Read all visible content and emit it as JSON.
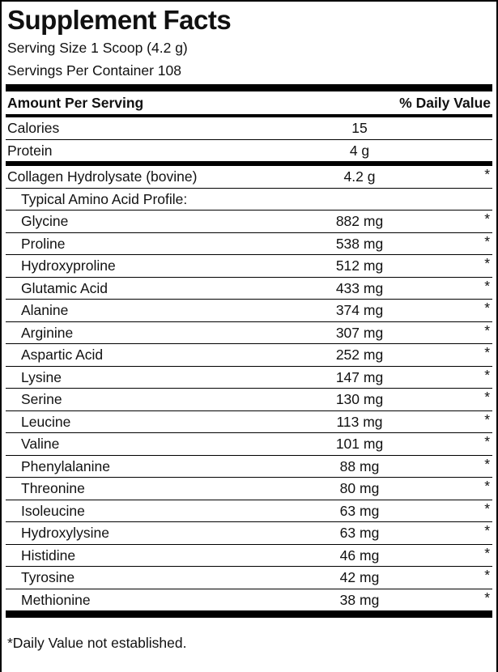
{
  "label": {
    "title": "Supplement Facts",
    "serving_size": "Serving Size 1 Scoop (4.2 g)",
    "servings_per_container": "Servings Per Container 108",
    "header": {
      "amount": "Amount Per Serving",
      "daily_value": "% Daily Value"
    },
    "rows": [
      {
        "label": "Calories",
        "amount": "15",
        "dv": "",
        "indent": false,
        "rule": "thin"
      },
      {
        "label": "Protein",
        "amount": "4 g",
        "dv": "",
        "indent": false,
        "rule": "thick"
      },
      {
        "label": "Collagen Hydrolysate (bovine)",
        "amount": "4.2 g",
        "dv": "*",
        "indent": false,
        "rule": "thin"
      },
      {
        "label": "Typical Amino Acid Profile:",
        "amount": "",
        "dv": "",
        "indent": true,
        "rule": "thin"
      },
      {
        "label": "Glycine",
        "amount": "882 mg",
        "dv": "*",
        "indent": true,
        "rule": "thin"
      },
      {
        "label": "Proline",
        "amount": "538 mg",
        "dv": "*",
        "indent": true,
        "rule": "thin"
      },
      {
        "label": "Hydroxyproline",
        "amount": "512 mg",
        "dv": "*",
        "indent": true,
        "rule": "thin"
      },
      {
        "label": "Glutamic Acid",
        "amount": "433 mg",
        "dv": "*",
        "indent": true,
        "rule": "thin"
      },
      {
        "label": "Alanine",
        "amount": "374 mg",
        "dv": "*",
        "indent": true,
        "rule": "thin"
      },
      {
        "label": "Arginine",
        "amount": "307 mg",
        "dv": "*",
        "indent": true,
        "rule": "thin"
      },
      {
        "label": "Aspartic Acid",
        "amount": "252 mg",
        "dv": "*",
        "indent": true,
        "rule": "thin"
      },
      {
        "label": "Lysine",
        "amount": "147 mg",
        "dv": "*",
        "indent": true,
        "rule": "thin"
      },
      {
        "label": "Serine",
        "amount": "130 mg",
        "dv": "*",
        "indent": true,
        "rule": "thin"
      },
      {
        "label": "Leucine",
        "amount": "113 mg",
        "dv": "*",
        "indent": true,
        "rule": "thin"
      },
      {
        "label": "Valine",
        "amount": "101 mg",
        "dv": "*",
        "indent": true,
        "rule": "thin"
      },
      {
        "label": "Phenylalanine",
        "amount": "88 mg",
        "dv": "*",
        "indent": true,
        "rule": "thin"
      },
      {
        "label": "Threonine",
        "amount": "80 mg",
        "dv": "*",
        "indent": true,
        "rule": "thin"
      },
      {
        "label": "Isoleucine",
        "amount": "63 mg",
        "dv": "*",
        "indent": true,
        "rule": "thin"
      },
      {
        "label": "Hydroxylysine",
        "amount": "63 mg",
        "dv": "*",
        "indent": true,
        "rule": "thin"
      },
      {
        "label": "Histidine",
        "amount": "46 mg",
        "dv": "*",
        "indent": true,
        "rule": "thin"
      },
      {
        "label": "Tyrosine",
        "amount": "42 mg",
        "dv": "*",
        "indent": true,
        "rule": "thin"
      },
      {
        "label": "Methionine",
        "amount": "38 mg",
        "dv": "*",
        "indent": true,
        "rule": "none"
      }
    ],
    "footnote": "*Daily Value not established.",
    "colors": {
      "text": "#111111",
      "rule": "#000000",
      "background": "#ffffff"
    }
  }
}
